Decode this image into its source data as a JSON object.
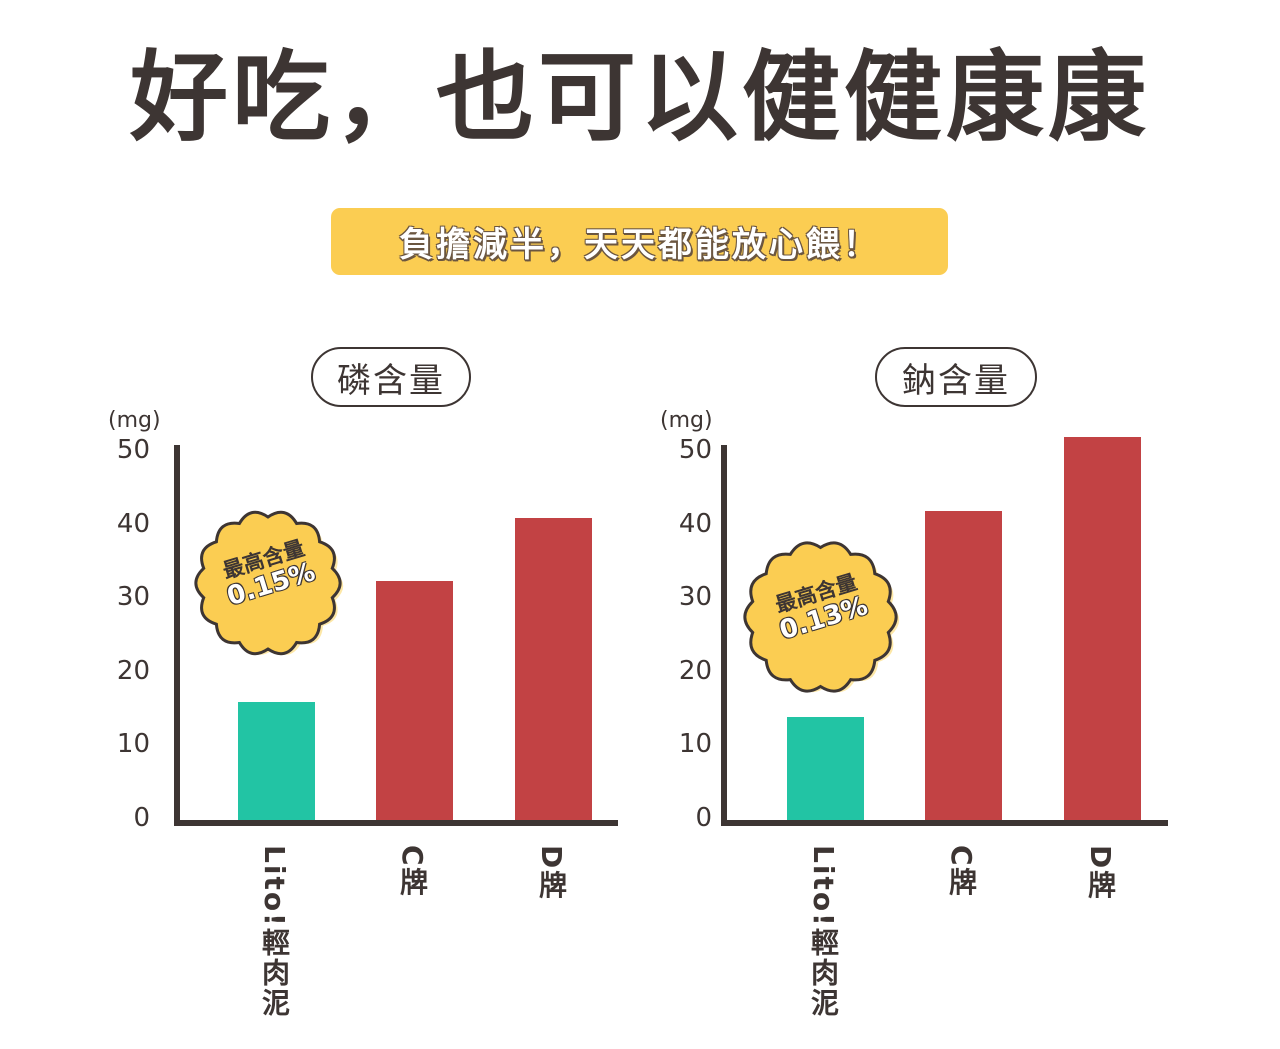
{
  "header": {
    "title": "好吃，也可以健健康康",
    "banner": "負擔減半，天天都能放心餵！"
  },
  "colors": {
    "highlight": "#22c4a4",
    "other": "#c24244",
    "banner": "#fbcd52",
    "burst": "#fbcd52",
    "text": "#3d3533"
  },
  "chart_data": [
    {
      "type": "bar",
      "title": "磷含量",
      "unit": "(mg)",
      "ylim": [
        0,
        50
      ],
      "yticks": [
        "50",
        "40",
        "30",
        "20",
        "10",
        "0"
      ],
      "categories": [
        "Lito!輕肉泥",
        "C牌",
        "D牌"
      ],
      "values": [
        16,
        32.5,
        41
      ],
      "callout": {
        "label": "最高含量",
        "value": "0.15%"
      }
    },
    {
      "type": "bar",
      "title": "鈉含量",
      "unit": "(mg)",
      "ylim": [
        0,
        50
      ],
      "yticks": [
        "50",
        "40",
        "30",
        "20",
        "10",
        "0"
      ],
      "categories": [
        "Lito!輕肉泥",
        "C牌",
        "D牌"
      ],
      "values": [
        14,
        42,
        52
      ],
      "callout": {
        "label": "最高含量",
        "value": "0.13%"
      }
    }
  ]
}
